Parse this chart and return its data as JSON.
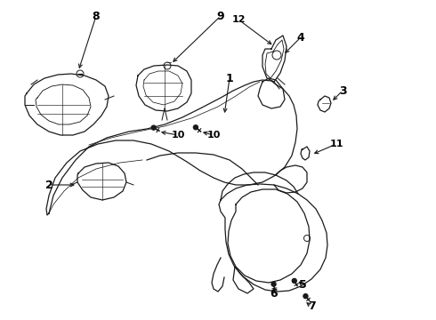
{
  "background_color": "#ffffff",
  "line_color": "#1a1a1a",
  "text_color": "#000000",
  "fig_width": 4.9,
  "fig_height": 3.6,
  "dpi": 100
}
